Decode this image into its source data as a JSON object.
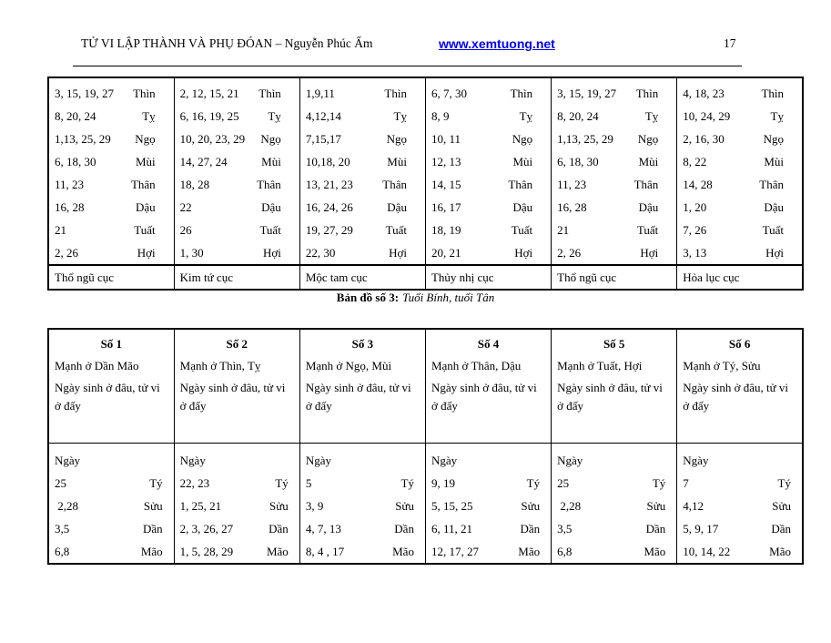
{
  "header": {
    "title": "TỬ VI LẬP THÀNH VÀ PHỤ ĐÓAN – Nguyễn Phúc Ấm",
    "url": "www.xemtuong.net",
    "page_number": "17"
  },
  "table1": {
    "columns": [
      {
        "rows": [
          [
            "3, 15, 19, 27",
            "Thìn"
          ],
          [
            "8, 20, 24",
            "Tỵ"
          ],
          [
            "1,13, 25, 29",
            "Ngọ"
          ],
          [
            "6, 18, 30",
            "Mùi"
          ],
          [
            "11, 23",
            "Thân"
          ],
          [
            "16, 28",
            "Dậu"
          ],
          [
            "21",
            "Tuất"
          ],
          [
            "2, 26",
            "Hợi"
          ]
        ],
        "footer": "Thổ ngũ cục"
      },
      {
        "rows": [
          [
            "2, 12, 15, 21",
            "Thìn"
          ],
          [
            "6, 16, 19, 25",
            "Tỵ"
          ],
          [
            "10, 20, 23, 29",
            "Ngọ"
          ],
          [
            "14, 27, 24",
            "Mùi"
          ],
          [
            "18, 28",
            "Thân"
          ],
          [
            "22",
            "Dậu"
          ],
          [
            "26",
            "Tuất"
          ],
          [
            "1, 30",
            "Hợi"
          ]
        ],
        "footer": "Kim tứ cục"
      },
      {
        "rows": [
          [
            "1,9,11",
            "Thìn"
          ],
          [
            "4,12,14",
            "Tỵ"
          ],
          [
            "7,15,17",
            "Ngọ"
          ],
          [
            "10,18, 20",
            "Mùi"
          ],
          [
            "13, 21, 23",
            "Thân"
          ],
          [
            "16, 24, 26",
            "Dậu"
          ],
          [
            "19, 27, 29",
            "Tuất"
          ],
          [
            "22, 30",
            "Hợi"
          ]
        ],
        "footer": "Mộc tam cục"
      },
      {
        "rows": [
          [
            "6, 7, 30",
            "Thìn"
          ],
          [
            "8, 9",
            "Tỵ"
          ],
          [
            "10, 11",
            "Ngọ"
          ],
          [
            "12, 13",
            "Mùi"
          ],
          [
            "14, 15",
            "Thân"
          ],
          [
            "16, 17",
            "Dậu"
          ],
          [
            "18, 19",
            "Tuất"
          ],
          [
            "20, 21",
            "Hợi"
          ]
        ],
        "footer": "Thủy nhị cục"
      },
      {
        "rows": [
          [
            "3, 15, 19, 27",
            "Thìn"
          ],
          [
            "8, 20, 24",
            "Tỵ"
          ],
          [
            "1,13, 25, 29",
            "Ngọ"
          ],
          [
            "6, 18, 30",
            "Mùi"
          ],
          [
            "11, 23",
            "Thân"
          ],
          [
            "16, 28",
            "Dậu"
          ],
          [
            "21",
            "Tuất"
          ],
          [
            "2, 26",
            "Hợi"
          ]
        ],
        "footer": "Thổ ngũ cục"
      },
      {
        "rows": [
          [
            "4, 18, 23",
            "Thìn"
          ],
          [
            "10, 24, 29",
            "Tỵ"
          ],
          [
            "2, 16, 30",
            "Ngọ"
          ],
          [
            "8, 22",
            "Mùi"
          ],
          [
            "14, 28",
            "Thân"
          ],
          [
            "1, 20",
            "Dậu"
          ],
          [
            "7, 26",
            "Tuất"
          ],
          [
            "3, 13",
            "Hợi"
          ]
        ],
        "footer": "Hỏa lục cục"
      }
    ]
  },
  "caption": {
    "bold": "Bản đồ số 3:",
    "italic": "Tuổi Bính, tuổi Tân"
  },
  "table2": {
    "columns": [
      {
        "title": "Số 1",
        "menh": "Mạnh ở Dần Mão",
        "note": "Ngày sinh ở đâu, tử vi ở đấy",
        "day_label": "Ngày",
        "rows": [
          [
            "25",
            "Tý"
          ],
          [
            " 2,28",
            "Sửu"
          ],
          [
            "3,5",
            "Dần"
          ],
          [
            "6,8",
            "Mão"
          ]
        ]
      },
      {
        "title": "Số 2",
        "menh": "Mạnh ở Thìn, Tỵ",
        "note": "Ngày sinh ở đâu, tử vi ở đấy",
        "day_label": "Ngày",
        "rows": [
          [
            "22, 23",
            "Tý"
          ],
          [
            "1, 25, 21",
            "Sửu"
          ],
          [
            "2, 3, 26, 27",
            "Dần"
          ],
          [
            "1, 5, 28, 29",
            "Mão"
          ]
        ]
      },
      {
        "title": "Số 3",
        "menh": "Mạnh ở Ngọ, Mùi",
        "note": "Ngày sinh ở đâu, tử vi ở đấy",
        "day_label": "Ngày",
        "rows": [
          [
            "5",
            "Tý"
          ],
          [
            "3, 9",
            "Sửu"
          ],
          [
            "4, 7, 13",
            "Dần"
          ],
          [
            "8, 4 , 17",
            "Mão"
          ]
        ]
      },
      {
        "title": "Số 4",
        "menh": "Mạnh ở Thân, Dậu",
        "note": "Ngày sinh ở đâu, tử vi ở đấy",
        "day_label": "Ngày",
        "rows": [
          [
            "9, 19",
            "Tý"
          ],
          [
            "5, 15, 25",
            "Sửu"
          ],
          [
            "6, 11, 21",
            "Dần"
          ],
          [
            "12, 17, 27",
            "Mão"
          ]
        ]
      },
      {
        "title": "Số 5",
        "menh": "Mạnh ở Tuất, Hợi",
        "note": "Ngày sinh ở đâu, tử vi ở đấy",
        "day_label": "Ngày",
        "rows": [
          [
            "25",
            "Tý"
          ],
          [
            " 2,28",
            "Sửu"
          ],
          [
            "3,5",
            "Dần"
          ],
          [
            "6,8",
            "Mão"
          ]
        ]
      },
      {
        "title": "Số 6",
        "menh": "Mạnh ở Tý, Sửu",
        "note": "Ngày sinh ở đâu, tử vi ở đấy",
        "day_label": "Ngày",
        "rows": [
          [
            "7",
            "Tý"
          ],
          [
            "4,12",
            "Sửu"
          ],
          [
            "5, 9, 17",
            "Dần"
          ],
          [
            "10, 14, 22",
            "Mão"
          ]
        ]
      }
    ]
  }
}
